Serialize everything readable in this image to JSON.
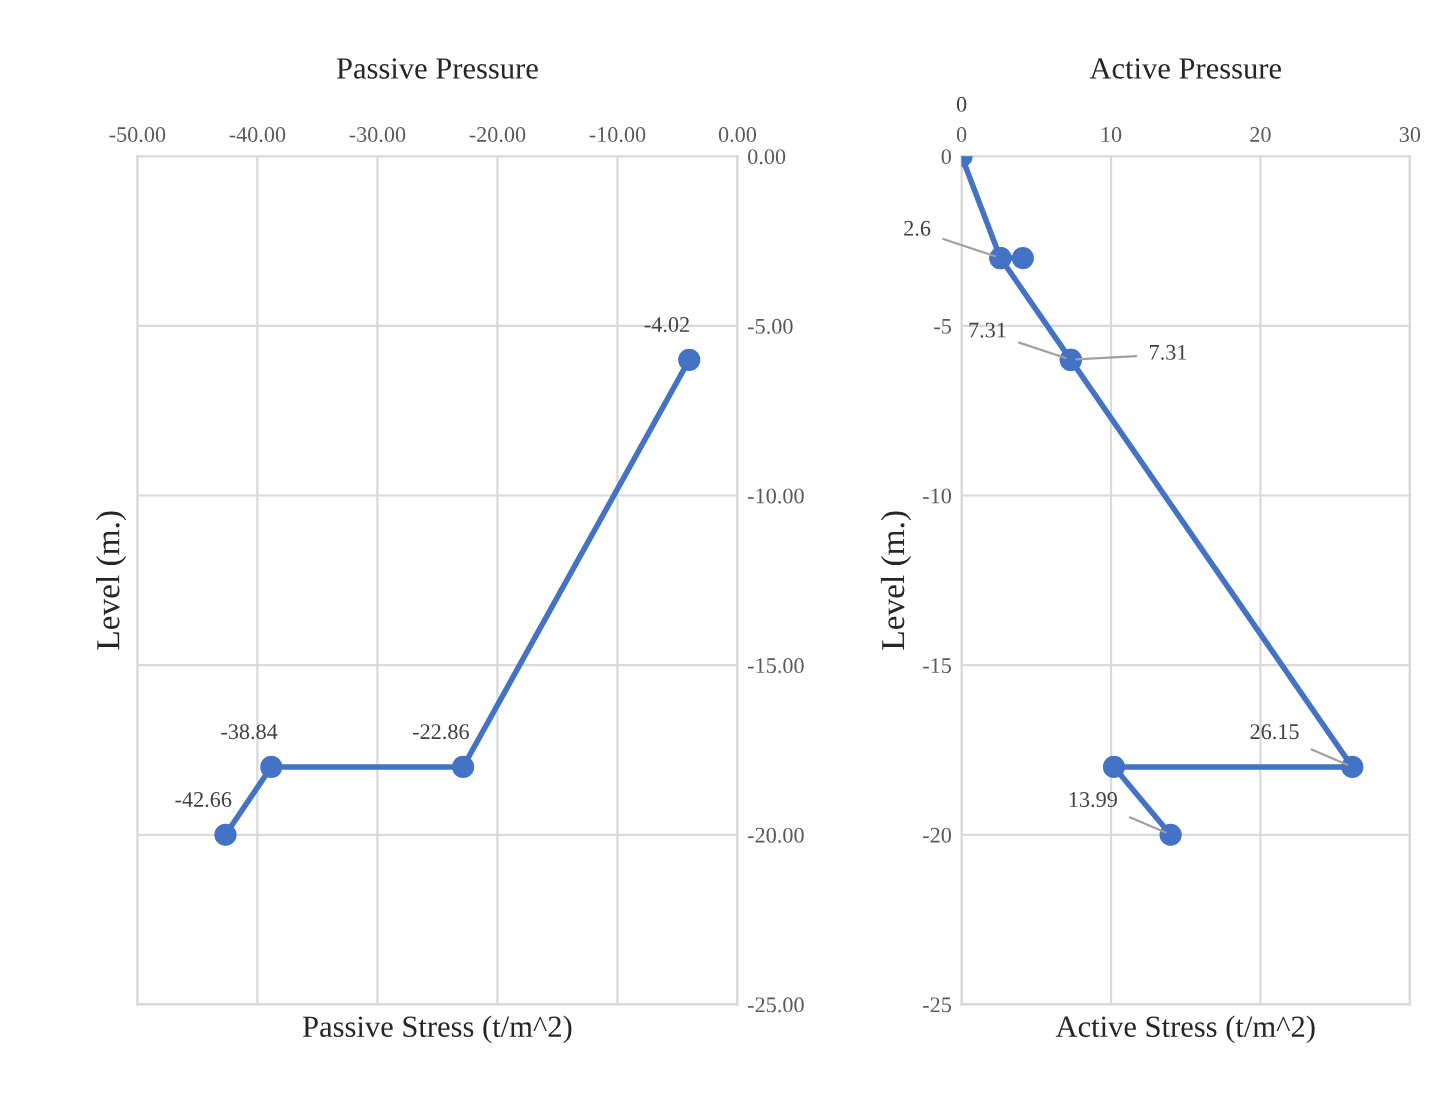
{
  "chart_data": [
    {
      "type": "line",
      "title": "Passive Pressure",
      "xlabel": "Passive Stress (t/m^2)",
      "ylabel": "Level (m.)",
      "orientation": "horizontal",
      "series": [
        {
          "color": "#4472c4",
          "x": [
            -6,
            -18,
            -18,
            -20
          ],
          "values": [
            -4.02,
            -22.86,
            -38.84,
            -42.66
          ]
        }
      ],
      "xlim": [
        -50,
        0
      ],
      "ylim": [
        -25,
        0
      ],
      "xticks": [
        {
          "value": -50,
          "label": "-50.00"
        },
        {
          "value": -40,
          "label": "-40.00"
        },
        {
          "value": -30,
          "label": "-30.00"
        },
        {
          "value": -20,
          "label": "-20.00"
        },
        {
          "value": -10,
          "label": "-10.00"
        },
        {
          "value": 0,
          "label": "0.00"
        }
      ],
      "yticks": [
        {
          "value": -25,
          "label": "-25.00"
        },
        {
          "value": -20,
          "label": "-20.00"
        },
        {
          "value": -15,
          "label": "-15.00"
        },
        {
          "value": -10,
          "label": "-10.00"
        },
        {
          "value": -5,
          "label": "-5.00"
        },
        {
          "value": 0,
          "label": "0.00"
        }
      ],
      "data_labels": true,
      "grid": true,
      "marker": "circle",
      "line_style": "solid"
    },
    {
      "type": "line",
      "title": "Active Pressure",
      "xlabel": "Active Stress (t/m^2)",
      "ylabel": "Level (m.)",
      "orientation": "horizontal",
      "series": [
        {
          "color": "#4472c4",
          "x": [
            0,
            -3,
            -3,
            -3,
            -6,
            -6,
            -18,
            -18,
            -20
          ],
          "values": [
            0,
            2.6,
            4.1,
            2.6,
            7.31,
            7.31,
            26.15,
            10.2,
            13.99
          ],
          "value_labels": [
            "0",
            "2.6",
            null,
            null,
            "7.31",
            "7.31",
            "26.15",
            null,
            "13.99"
          ]
        }
      ],
      "xlim": [
        0,
        30
      ],
      "ylim": [
        -25,
        0
      ],
      "xticks": [
        0,
        10,
        20,
        30
      ],
      "yticks": [
        -25,
        -20,
        -15,
        -10,
        -5,
        0
      ],
      "grid": true,
      "marker": "circle",
      "line_style": "solid"
    }
  ]
}
